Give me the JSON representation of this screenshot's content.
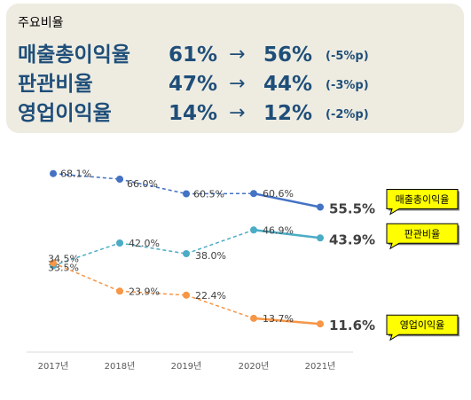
{
  "summary": {
    "title": "주요비율",
    "rows": [
      {
        "name": "매출총이익율",
        "from": "61%",
        "arrow": "→",
        "to": "56%",
        "delta": "(-5%p)"
      },
      {
        "name": "판관비율",
        "from": "47%",
        "arrow": "→",
        "to": "44%",
        "delta": "(-3%p)"
      },
      {
        "name": "영업이익율",
        "from": "14%",
        "arrow": "→",
        "to": "12%",
        "delta": "(-2%p)"
      }
    ]
  },
  "chart_data": {
    "type": "line",
    "title": "",
    "xlabel": "",
    "ylabel": "",
    "categories": [
      "2017년",
      "2018년",
      "2019년",
      "2020년",
      "2021년"
    ],
    "ylim": [
      0,
      80
    ],
    "grid": false,
    "series": [
      {
        "name": "매출총이익율",
        "values": [
          68.1,
          66.0,
          60.5,
          60.6,
          55.5
        ],
        "labels": [
          "68.1%",
          "66.0%",
          "60.5%",
          "60.6%",
          "55.5%"
        ],
        "color": "#4472c4"
      },
      {
        "name": "판관비율",
        "values": [
          33.5,
          42.0,
          38.0,
          46.9,
          43.9
        ],
        "labels": [
          "33.5%",
          "42.0%",
          "38.0%",
          "46.9%",
          "43.9%"
        ],
        "color": "#4bacc6"
      },
      {
        "name": "영업이익율",
        "values": [
          34.5,
          23.9,
          22.4,
          13.7,
          11.6
        ],
        "labels": [
          "34.5%",
          "23.9%",
          "22.4%",
          "13.7%",
          "11.6%"
        ],
        "color": "#f79646"
      }
    ]
  }
}
